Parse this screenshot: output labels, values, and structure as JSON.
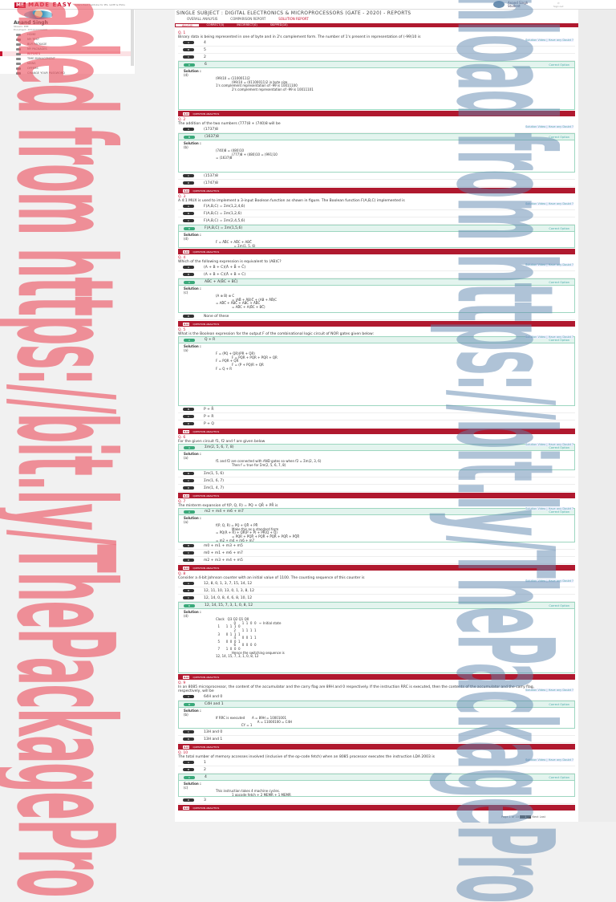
{
  "header": {
    "logo_mark": "ME",
    "brand": "MADE EASY",
    "tagline": "India's Best Institute for IES, GATE & PSUs",
    "user_name": "Anand Singh",
    "user_role": "Student",
    "signout": "Sign out"
  },
  "sidebar": {
    "name": "Anand Singh",
    "stream": "Stream: EEE",
    "enrol": "Enrolment: XXXXXXXXXXXX",
    "items": [
      {
        "label": "HOME"
      },
      {
        "label": "MY TEST"
      },
      {
        "label": "BUY PACKAGE"
      },
      {
        "label": "MY PACKAGES"
      },
      {
        "label": "REPORTS",
        "active": true
      },
      {
        "label": "TIME MANAGEMENT"
      },
      {
        "label": "NEWS"
      },
      {
        "label": "OFFERS"
      },
      {
        "label": "CHANGE YOUR PASSWORD"
      }
    ]
  },
  "page": {
    "title": "SINGLE SUBJECT : DIGITAL ELECTRONICS & MICROPROCESSORS (GATE - 2020) - REPORTS",
    "tabs": [
      {
        "label": "OVERALL ANALYSIS"
      },
      {
        "label": "COMPARISON REPORT"
      },
      {
        "label": "SOLUTION REPORT",
        "active": true
      }
    ],
    "subtabs": [
      {
        "label": "ALL(10)",
        "active": true
      },
      {
        "label": "CORRECT(0)"
      },
      {
        "label": "INCORRECT(0)"
      },
      {
        "label": "SKIPPED(10)"
      }
    ]
  },
  "common": {
    "solution_video": "Solution Video | Have any Doubt ?",
    "correct_option": "Correct Option",
    "solution": "Solution :",
    "analytics": "QUESTION ANALYTICS",
    "ia": "ILIA"
  },
  "questions": [
    {
      "no": "Q. 1",
      "text": "Binary data is being represented in one of byte and in 2's complement form. The number of 1's present in representation of (-99)10 is",
      "options": [
        "4",
        "5",
        "2",
        "6"
      ],
      "correct": 3,
      "ans": "(d)",
      "sol": [
        "(99)10 = (1100011)2",
        "(99)10 = (01100011)2 in byte size",
        "1's complement representation of -99 is 10011100",
        "2's complement representation of -99 is 10011101"
      ]
    },
    {
      "no": "Q. 2",
      "text": "The addition of the two numbers (777)8 + (740)8 will be",
      "options": [
        "(1737)8",
        "(1637)8",
        "(1537)8",
        "(1747)8"
      ],
      "correct": 1,
      "ans": "(b)",
      "sol": [
        "(740)8 = (480)10",
        "(777)8 + (480)10 = (991)10",
        "= (1637)8"
      ]
    },
    {
      "no": "Q. 3",
      "text": "A 4:1 MUX is used to implement a 3-input Boolean function as shown in figure. The Boolean function F(A,B,C) implemented is",
      "options": [
        "F(A,B,C) = Σm(1,2,4,6)",
        "F(A,B,C) = Σm(1,2,6)",
        "F(A,B,C) = Σm(2,4,5,6)",
        "F(A,B,C) = Σm(1,5,6)"
      ],
      "correct": 3,
      "ans": "(d)",
      "sol": [
        "F = ĀB̄C + AB̄C + ABC̄",
        "  = Σm(1, 5, 6)"
      ]
    },
    {
      "no": "Q. 4",
      "text": "Which of the following expression is equivalent to (AB)C?",
      "options": [
        "(A + B + C)(Ā + B̄ + C̄)",
        "(A + B + C)(Ā + B + C)",
        "AB̄C + A(B̄C + BC̄)",
        "None of these"
      ],
      "correct": 2,
      "ans": "(c)",
      "sol": [
        "(A ⊕ B) ⊕ C",
        "= (AB̄ + ĀB)C̄ + (AB + ĀB̄)C",
        "= AB̄C̄ + ĀBC̄ + ABC + ĀB̄C",
        "= AB̄C + A(B̄C + BC̄)"
      ]
    },
    {
      "no": "Q. 5",
      "text": "What is the Boolean expression for the output F of the combinational logic circuit of NOR gates given below:",
      "options": [
        "Q + R",
        "P + R̄",
        "P + R",
        "P + Q"
      ],
      "correct": 0,
      "ans": "(a)",
      "sol": [
        "F = (PQ + QR)(PR + QR)",
        "F = PQR + PQR + PQR + QR",
        "F = PQR + QR",
        "F = (P + PQ)R + QR",
        "F = Q + R"
      ]
    },
    {
      "no": "Q. 6",
      "text": "For the given circuit f1, f2 and f are given below",
      "options": [
        "Σm(2, 5, 6, 7, 8)",
        "Σm(1, 5, 6)",
        "Σm(1, 6, 7)",
        "Σm(1, 4, 7)"
      ],
      "correct": 0,
      "ans": "(a)",
      "sol": [
        "f1 and f2 are connected with AND gates so when f2 = Σm(2, 3, 6)",
        "Then f = true for Σm(2, 5, 6, 7, 8)"
      ]
    },
    {
      "no": "Q. 7",
      "text": "The minterm expansion of f(P, Q, R) = PQ + QR̄ + PR̄ is",
      "options": [
        "m2 + m4 + m6 + m7",
        "m0 + m1 + m3 + m5",
        "m0 + m1 + m6 + m7",
        "m2 + m3 + m4 + m5"
      ],
      "correct": 0,
      "ans": "(a)",
      "sol": [
        "f(P, Q, R) = PQ + QR̄ + PR̄",
        "Make this as a standard form",
        "= PQ(R + R̄) + QR̄(P + P̄) + PR̄(Q + Q̄)",
        "= PQR + PQR̄ + PQR̄ + P̄QR̄ + PQR̄ + PQ̄R̄",
        "= m2 + m4 + m6 + m7"
      ]
    },
    {
      "no": "Q. 8",
      "text": "Consider a 4-bit Johnson counter with an initial value of 1100. The counting sequence of this counter is",
      "options": [
        "12, 8, 0, 1, 3, 7, 15, 14, 12",
        "12, 11, 10, 13, 0, 1, 3, 8, 12",
        "12, 14, 0, 8, 4, 6, 8, 10, 12",
        "12, 14, 15, 7, 3, 1, 0, 8, 12"
      ],
      "correct": 3,
      "ans": "(d)",
      "sol": [
        "Clock   Q3 Q2 Q1 Q0",
        "  0      1  1  0  0   ← Initial state",
        "  1      1  1  1  0",
        "  2      1  1  1  1",
        "  3      0  1  1  1",
        "  4      0  0  1  1",
        "  5      0  0  0  1",
        "  6      0  0  0  0",
        "  7      1  0  0  0",
        "Hence the switching sequence is",
        "12, 14, 15, 7, 3, 1, 0, 8, 12"
      ]
    },
    {
      "no": "Q. 9",
      "text": "In an 8085 microprocessor, the content of the accumulator and the carry flag are 89H and 0 respectively. If the instruction RRC is executed, then the contents of the accumulator and the carry flag, respectively, will be",
      "options": [
        "64H and 0",
        "C4H and 1",
        "13H and 0",
        "13H and 1"
      ],
      "correct": 1,
      "ans": "(b)",
      "sol": [
        "If RRC is executed       A = 89H = 10001001",
        "                         A = 11000100 = C4H",
        "                         CY = 1"
      ]
    },
    {
      "no": "Q. 10",
      "text": "The total number of memory accesses involved (inclusive of the op-code fetch) when an 8085 processor executes the instruction LDA 2003 is",
      "options": [
        "1",
        "2",
        "4",
        "3"
      ],
      "correct": 2,
      "ans": "(c)",
      "sol": [
        "This instruction takes 4 machine cycles.",
        "1 opcode fetch + 2 MEMR + 1 MEMR",
        "∴ Therefore 4 memory accesses are present in LDA 2003 instruction."
      ]
    }
  ],
  "pager": {
    "text": "Page 1 of 10",
    "current": "1",
    "next": "Next",
    "last": "Last"
  },
  "watermarks": {
    "left": "aded from https://bit.ly/ThePackagePro",
    "right": "nload from https://bit.ly/ThePackagePro"
  }
}
